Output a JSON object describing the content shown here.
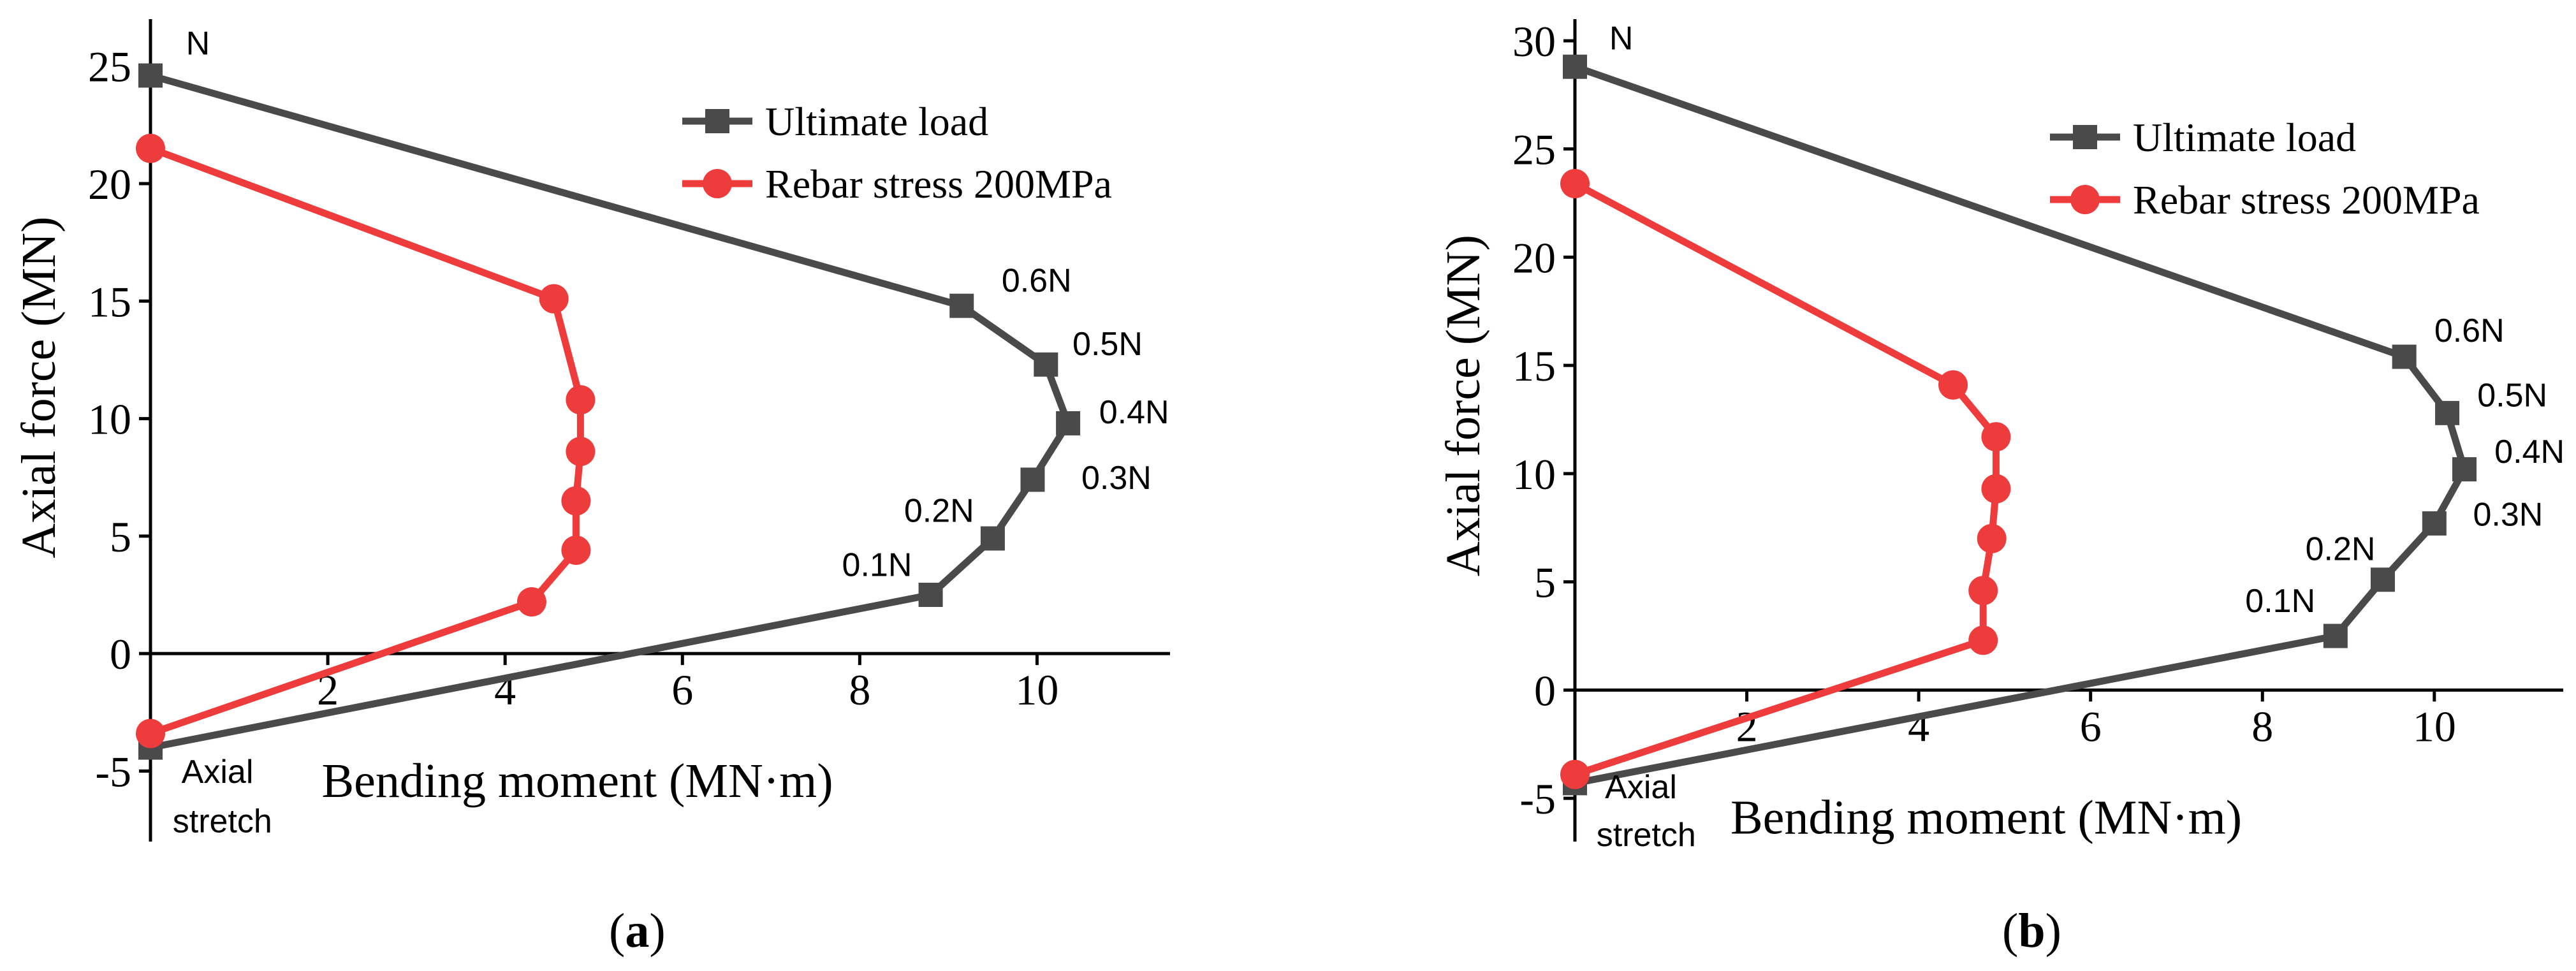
{
  "colors": {
    "ultimate": "#4a4a4a",
    "rebar": "#ee3b3b",
    "axis": "#000000"
  },
  "chart_data": [
    {
      "type": "line",
      "caption_paren_open": "(",
      "caption_letter": "a",
      "caption_paren_close": ")",
      "xlabel": "Bending moment (MN·m)",
      "ylabel": "Axial force (MN)",
      "xlim": [
        0,
        11.5
      ],
      "ylim": [
        -8,
        27
      ],
      "xticks": [
        2,
        4,
        6,
        8,
        10
      ],
      "yticks": [
        -5,
        0,
        5,
        10,
        15,
        20,
        25
      ],
      "series": [
        {
          "name": "Ultimate load",
          "marker": "square",
          "x": [
            0,
            8.8,
            9.5,
            9.95,
            10.35,
            10.1,
            9.15,
            0
          ],
          "y": [
            -4.0,
            2.5,
            4.9,
            7.4,
            9.8,
            12.3,
            14.8,
            24.6
          ]
        },
        {
          "name": "Rebar stress 200MPa",
          "marker": "circle",
          "x": [
            0,
            4.3,
            4.8,
            4.8,
            4.85,
            4.85,
            4.55,
            0
          ],
          "y": [
            -3.4,
            2.2,
            4.4,
            6.5,
            8.6,
            10.8,
            15.1,
            21.5
          ]
        }
      ],
      "annotations": [
        {
          "text": "N",
          "x": 0.4,
          "y": 25.5
        },
        {
          "text": "0.6N",
          "x": 9.6,
          "y": 15.4
        },
        {
          "text": "0.5N",
          "x": 10.4,
          "y": 12.7
        },
        {
          "text": "0.4N",
          "x": 10.7,
          "y": 9.8
        },
        {
          "text": "0.3N",
          "x": 10.5,
          "y": 7.0
        },
        {
          "text": "0.2N",
          "x": 8.5,
          "y": 5.6
        },
        {
          "text": "0.1N",
          "x": 7.8,
          "y": 3.3
        },
        {
          "text": "Axial",
          "x": 0.35,
          "y": -5.5
        },
        {
          "text": "stretch",
          "x": 0.25,
          "y": -7.6
        }
      ]
    },
    {
      "type": "line",
      "caption_paren_open": "(",
      "caption_letter": "b",
      "caption_paren_close": ")",
      "xlabel": "Bending moment (MN·m)",
      "ylabel": "Axial force (MN)",
      "xlim": [
        0,
        11.5
      ],
      "ylim": [
        -7,
        31
      ],
      "xticks": [
        2,
        4,
        6,
        8,
        10
      ],
      "yticks": [
        -5,
        0,
        5,
        10,
        15,
        20,
        25,
        30
      ],
      "series": [
        {
          "name": "Ultimate load",
          "marker": "square",
          "x": [
            0,
            8.85,
            9.4,
            10.0,
            10.35,
            10.15,
            9.65,
            0
          ],
          "y": [
            -4.3,
            2.5,
            5.1,
            7.7,
            10.2,
            12.8,
            15.4,
            28.8
          ]
        },
        {
          "name": "Rebar stress 200MPa",
          "marker": "circle",
          "x": [
            0,
            4.75,
            4.75,
            4.85,
            4.9,
            4.9,
            4.4,
            0
          ],
          "y": [
            -3.9,
            2.3,
            4.6,
            7.0,
            9.3,
            11.7,
            14.1,
            23.4
          ]
        }
      ],
      "annotations": [
        {
          "text": "N",
          "x": 0.4,
          "y": 29.6
        },
        {
          "text": "0.6N",
          "x": 10.0,
          "y": 16.1
        },
        {
          "text": "0.5N",
          "x": 10.5,
          "y": 13.1
        },
        {
          "text": "0.4N",
          "x": 10.7,
          "y": 10.5
        },
        {
          "text": "0.3N",
          "x": 10.45,
          "y": 7.6
        },
        {
          "text": "0.2N",
          "x": 8.5,
          "y": 6.0
        },
        {
          "text": "0.1N",
          "x": 7.8,
          "y": 3.6
        },
        {
          "text": "Axial",
          "x": 0.35,
          "y": -5.0
        },
        {
          "text": "stretch",
          "x": 0.25,
          "y": -7.2
        }
      ]
    }
  ]
}
